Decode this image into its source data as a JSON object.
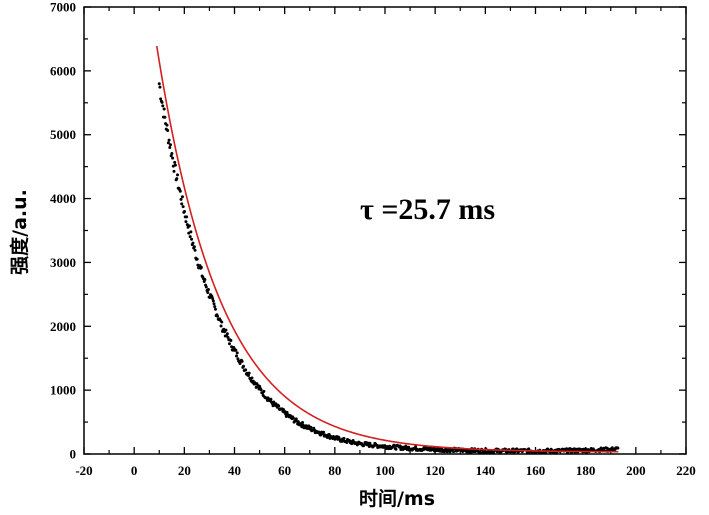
{
  "chart_data": {
    "type": "scatter",
    "title": "",
    "xlabel": "时间/ms",
    "ylabel": "强度/a.u.",
    "xlim": [
      -20,
      220
    ],
    "ylim": [
      0,
      7000
    ],
    "x_ticks": [
      -20,
      0,
      20,
      40,
      60,
      80,
      100,
      120,
      140,
      160,
      180,
      200,
      220
    ],
    "y_ticks": [
      0,
      1000,
      2000,
      3000,
      4000,
      5000,
      6000,
      7000
    ],
    "grid": false,
    "annotation": "τ =25.7 ms",
    "series": [
      {
        "type": "scatter",
        "color": "#000000",
        "x": [
          10,
          12,
          14,
          16,
          18,
          20,
          22,
          24,
          26,
          28,
          30,
          35,
          40,
          45,
          50,
          55,
          60,
          65,
          70,
          75,
          80,
          85,
          90,
          95,
          100,
          110,
          120,
          130,
          140,
          150,
          160,
          170,
          180,
          190,
          193
        ],
        "y": [
          5800,
          5300,
          4900,
          4500,
          4150,
          3800,
          3500,
          3200,
          2950,
          2700,
          2500,
          2000,
          1620,
          1280,
          1020,
          800,
          640,
          500,
          400,
          320,
          250,
          200,
          160,
          140,
          120,
          90,
          70,
          60,
          50,
          50,
          50,
          50,
          60,
          70,
          80
        ]
      },
      {
        "type": "line",
        "color": "#d42020",
        "fit": {
          "A": 6360,
          "x0": 9,
          "tau": 25.7
        },
        "x_range": [
          9,
          193
        ]
      }
    ]
  }
}
